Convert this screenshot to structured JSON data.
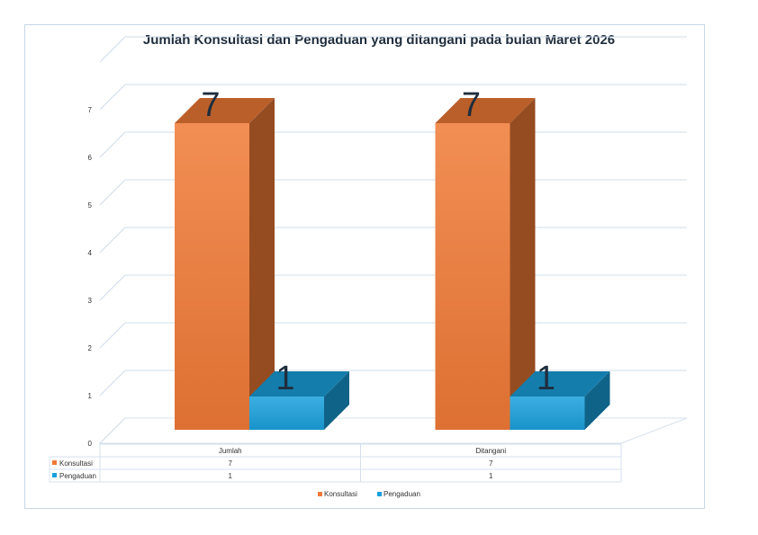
{
  "chart_data": {
    "type": "bar",
    "title": "Jumlah  Konsultasi dan Pengaduan yang ditangani pada bulan Maret 2026",
    "categories": [
      "Jumlah",
      "Ditangani"
    ],
    "series": [
      {
        "name": "Konsultasi",
        "values": [
          7,
          7
        ],
        "color": "#f07a36"
      },
      {
        "name": "Pengaduan",
        "values": [
          1,
          1
        ],
        "color": "#1aa0dc"
      }
    ],
    "data_labels": [
      "7",
      "1",
      "7",
      "1"
    ],
    "yticks": [
      "0",
      "1",
      "2",
      "3",
      "4",
      "5",
      "6",
      "7"
    ],
    "ylim": [
      0,
      8
    ],
    "grid": true,
    "legend": "bottom",
    "data_table": true,
    "legend_items": [
      "Konsultasi",
      "Pengaduan"
    ]
  }
}
